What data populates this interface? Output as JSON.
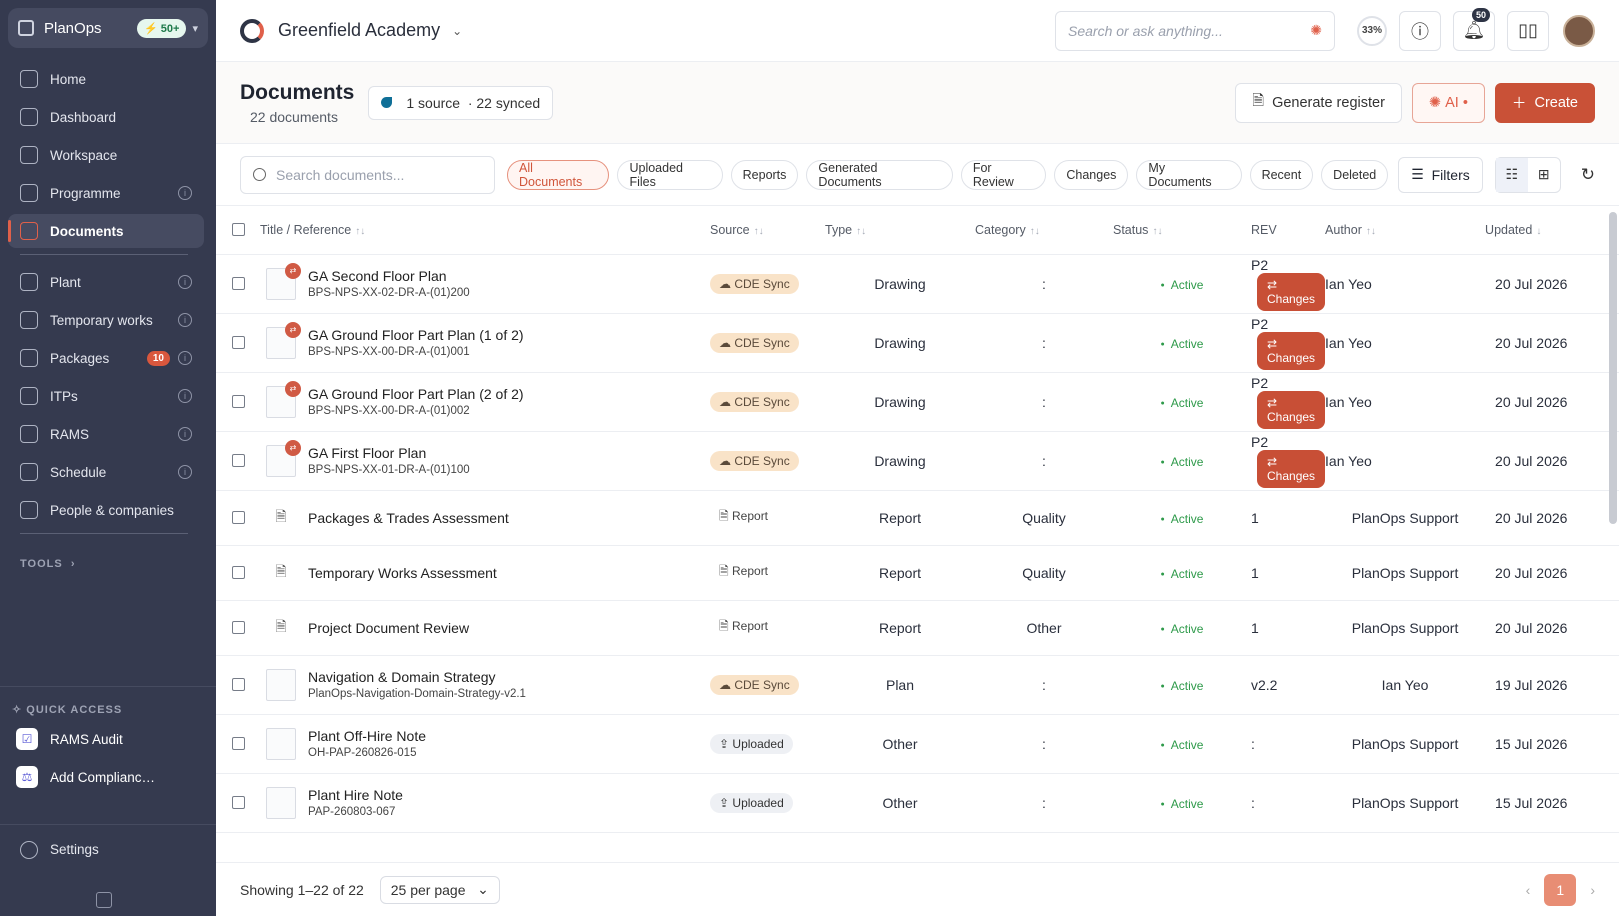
{
  "sidebar": {
    "brand": "PlanOps",
    "brand_badge": "50+",
    "items": [
      {
        "label": "Home",
        "icon": "grid-icon",
        "info": false
      },
      {
        "label": "Dashboard",
        "icon": "dashboard-icon",
        "info": false
      },
      {
        "label": "Workspace",
        "icon": "briefcase-icon",
        "info": false
      },
      {
        "label": "Programme",
        "icon": "programme-icon",
        "info": true
      },
      {
        "label": "Documents",
        "icon": "document-icon",
        "info": false,
        "active": true
      },
      {
        "label": "Plant",
        "icon": "plant-icon",
        "info": true
      },
      {
        "label": "Temporary works",
        "icon": "layers-icon",
        "info": true
      },
      {
        "label": "Packages",
        "icon": "package-icon",
        "info": true,
        "badge": "10"
      },
      {
        "label": "ITPs",
        "icon": "clipboard-icon",
        "info": true
      },
      {
        "label": "RAMS",
        "icon": "shield-icon",
        "info": true
      },
      {
        "label": "Schedule",
        "icon": "calendar-icon",
        "info": true
      },
      {
        "label": "People & companies",
        "icon": "building-icon",
        "info": false
      }
    ],
    "tools_label": "TOOLS",
    "quick_access_title": "QUICK ACCESS",
    "quick_access": [
      "RAMS Audit",
      "Add Complianc…"
    ],
    "settings": "Settings"
  },
  "topbar": {
    "org_name": "Greenfield Academy",
    "search_placeholder": "Search or ask anything...",
    "progress": "33%",
    "notifications": "50"
  },
  "page": {
    "title": "Documents",
    "subtitle": "22 documents",
    "source_count": "1 source",
    "synced": "· 22 synced",
    "generate_register": "Generate register",
    "ai_label": "AI",
    "create_label": "Create"
  },
  "filters": {
    "search_placeholder": "Search documents...",
    "chips": [
      "All Documents",
      "Uploaded Files",
      "Reports",
      "Generated Documents",
      "For Review",
      "Changes",
      "My Documents",
      "Recent",
      "Deleted"
    ],
    "filters_label": "Filters"
  },
  "table": {
    "headers": {
      "title": "Title / Reference",
      "source": "Source",
      "type": "Type",
      "category": "Category",
      "status": "Status",
      "rev": "REV",
      "author": "Author",
      "updated": "Updated"
    },
    "rows": [
      {
        "title": "GA Second Floor Plan",
        "ref": "BPS-NPS-XX-02-DR-A-(01)200",
        "source": "CDE Sync",
        "type": "Drawing",
        "category": ":",
        "status": "Active",
        "rev": "P2",
        "changes": "Changes",
        "author": "Ian Yeo",
        "updated": "20 Jul 2026"
      },
      {
        "title": "GA Ground Floor Part Plan (1 of 2)",
        "ref": "BPS-NPS-XX-00-DR-A-(01)001",
        "source": "CDE Sync",
        "type": "Drawing",
        "category": ":",
        "status": "Active",
        "rev": "P2",
        "changes": "Changes",
        "author": "Ian Yeo",
        "updated": "20 Jul 2026"
      },
      {
        "title": "GA Ground Floor Part Plan (2 of 2)",
        "ref": "BPS-NPS-XX-00-DR-A-(01)002",
        "source": "CDE Sync",
        "type": "Drawing",
        "category": ":",
        "status": "Active",
        "rev": "P2",
        "changes": "Changes",
        "author": "Ian Yeo",
        "updated": "20 Jul 2026"
      },
      {
        "title": "GA First Floor Plan",
        "ref": "BPS-NPS-XX-01-DR-A-(01)100",
        "source": "CDE Sync",
        "type": "Drawing",
        "category": ":",
        "status": "Active",
        "rev": "P2",
        "changes": "Changes",
        "author": "Ian Yeo",
        "updated": "20 Jul 2026"
      },
      {
        "title": "Packages & Trades Assessment",
        "ref": "",
        "source": "Report",
        "type": "Report",
        "category": "Quality",
        "status": "Active",
        "rev": "1",
        "changes": "",
        "author": "PlanOps Support",
        "updated": "20 Jul 2026"
      },
      {
        "title": "Temporary Works Assessment",
        "ref": "",
        "source": "Report",
        "type": "Report",
        "category": "Quality",
        "status": "Active",
        "rev": "1",
        "changes": "",
        "author": "PlanOps Support",
        "updated": "20 Jul 2026"
      },
      {
        "title": "Project Document Review",
        "ref": "",
        "source": "Report",
        "type": "Report",
        "category": "Other",
        "status": "Active",
        "rev": "1",
        "changes": "",
        "author": "PlanOps Support",
        "updated": "20 Jul 2026"
      },
      {
        "title": "Navigation & Domain Strategy",
        "ref": "PlanOps-Navigation-Domain-Strategy-v2.1",
        "source": "CDE Sync",
        "type": "Plan",
        "category": ":",
        "status": "Active",
        "rev": "v2.2",
        "changes": "",
        "author": "Ian Yeo",
        "updated": "19 Jul 2026"
      },
      {
        "title": "Plant Off-Hire Note",
        "ref": "OH-PAP-260826-015",
        "source": "Uploaded",
        "type": "Other",
        "category": ":",
        "status": "Active",
        "rev": ":",
        "changes": "",
        "author": "PlanOps Support",
        "updated": "15 Jul 2026"
      },
      {
        "title": "Plant Hire Note",
        "ref": "PAP-260803-067",
        "source": "Uploaded",
        "type": "Other",
        "category": ":",
        "status": "Active",
        "rev": ":",
        "changes": "",
        "author": "PlanOps Support",
        "updated": "15 Jul 2026"
      }
    ]
  },
  "footer": {
    "showing": "Showing 1–22 of 22",
    "per_page": "25 per page",
    "page": "1"
  }
}
